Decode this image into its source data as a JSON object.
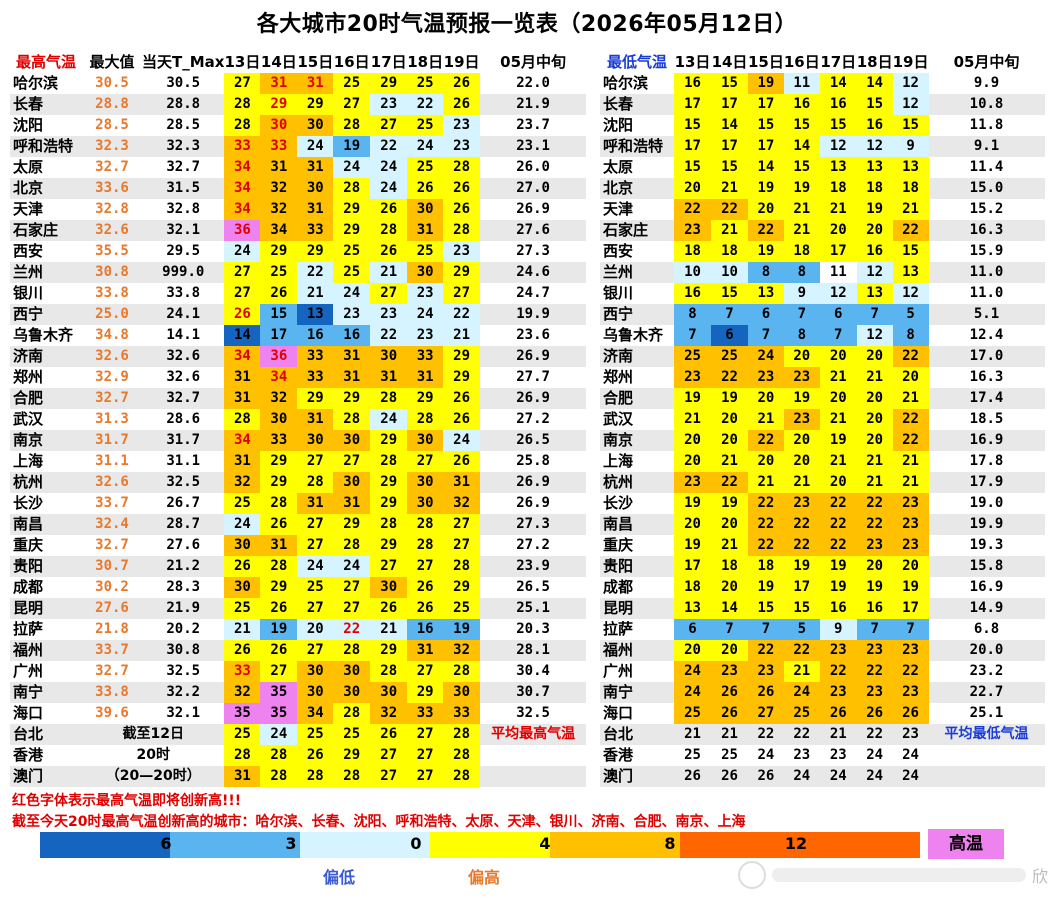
{
  "title": "各大城市20时气温预报一览表（2026年05月12日）",
  "high": {
    "headers": [
      "最高气温",
      "最大值",
      "当天T_Max",
      "13日",
      "14日",
      "15日",
      "16日",
      "17日",
      "18日",
      "19日",
      "05月中旬"
    ],
    "rows": [
      {
        "city": "哈尔滨",
        "max": "30.5",
        "tmax": "30.5",
        "d": [
          27,
          31,
          31,
          25,
          29,
          25,
          26
        ],
        "ten": "22.0"
      },
      {
        "city": "长春",
        "max": "28.8",
        "tmax": "28.8",
        "d": [
          28,
          29,
          29,
          27,
          23,
          22,
          26
        ],
        "ten": "21.9"
      },
      {
        "city": "沈阳",
        "max": "28.5",
        "tmax": "28.5",
        "d": [
          28,
          30,
          30,
          28,
          27,
          25,
          23
        ],
        "ten": "23.7"
      },
      {
        "city": "呼和浩特",
        "max": "32.3",
        "tmax": "32.3",
        "d": [
          33,
          33,
          24,
          19,
          22,
          24,
          23
        ],
        "ten": "23.1"
      },
      {
        "city": "太原",
        "max": "32.7",
        "tmax": "32.7",
        "d": [
          34,
          31,
          31,
          24,
          24,
          25,
          28
        ],
        "ten": "26.0"
      },
      {
        "city": "北京",
        "max": "33.6",
        "tmax": "31.5",
        "d": [
          34,
          32,
          30,
          28,
          24,
          26,
          26
        ],
        "ten": "27.0"
      },
      {
        "city": "天津",
        "max": "32.8",
        "tmax": "32.8",
        "d": [
          34,
          32,
          31,
          29,
          26,
          30,
          26
        ],
        "ten": "26.9"
      },
      {
        "city": "石家庄",
        "max": "32.6",
        "tmax": "32.1",
        "d": [
          36,
          34,
          33,
          29,
          28,
          31,
          28
        ],
        "ten": "27.6"
      },
      {
        "city": "西安",
        "max": "35.5",
        "tmax": "29.5",
        "d": [
          24,
          29,
          29,
          25,
          26,
          25,
          23
        ],
        "ten": "27.3"
      },
      {
        "city": "兰州",
        "max": "30.8",
        "tmax": "999.0",
        "d": [
          27,
          25,
          22,
          25,
          21,
          30,
          29
        ],
        "ten": "24.6"
      },
      {
        "city": "银川",
        "max": "33.8",
        "tmax": "33.8",
        "d": [
          27,
          26,
          21,
          24,
          27,
          23,
          27
        ],
        "ten": "24.7"
      },
      {
        "city": "西宁",
        "max": "25.0",
        "tmax": "24.1",
        "d": [
          26,
          15,
          13,
          23,
          23,
          24,
          22
        ],
        "ten": "19.9"
      },
      {
        "city": "乌鲁木齐",
        "max": "34.8",
        "tmax": "14.1",
        "d": [
          14,
          17,
          16,
          16,
          22,
          23,
          21
        ],
        "ten": "23.6"
      },
      {
        "city": "济南",
        "max": "32.6",
        "tmax": "32.6",
        "d": [
          34,
          36,
          33,
          31,
          30,
          33,
          29
        ],
        "ten": "26.9"
      },
      {
        "city": "郑州",
        "max": "32.9",
        "tmax": "32.6",
        "d": [
          31,
          34,
          33,
          31,
          31,
          31,
          29
        ],
        "ten": "27.7"
      },
      {
        "city": "合肥",
        "max": "32.7",
        "tmax": "32.7",
        "d": [
          31,
          32,
          29,
          29,
          28,
          29,
          26
        ],
        "ten": "26.9"
      },
      {
        "city": "武汉",
        "max": "31.3",
        "tmax": "28.6",
        "d": [
          28,
          30,
          31,
          28,
          24,
          28,
          26
        ],
        "ten": "27.2"
      },
      {
        "city": "南京",
        "max": "31.7",
        "tmax": "31.7",
        "d": [
          34,
          33,
          30,
          30,
          29,
          30,
          24
        ],
        "ten": "26.5"
      },
      {
        "city": "上海",
        "max": "31.1",
        "tmax": "31.1",
        "d": [
          31,
          29,
          27,
          27,
          28,
          27,
          26
        ],
        "ten": "25.8"
      },
      {
        "city": "杭州",
        "max": "32.6",
        "tmax": "32.5",
        "d": [
          32,
          29,
          28,
          30,
          29,
          30,
          31
        ],
        "ten": "26.9"
      },
      {
        "city": "长沙",
        "max": "33.7",
        "tmax": "26.7",
        "d": [
          25,
          28,
          31,
          31,
          29,
          30,
          32
        ],
        "ten": "26.9"
      },
      {
        "city": "南昌",
        "max": "32.4",
        "tmax": "28.7",
        "d": [
          24,
          26,
          27,
          29,
          28,
          28,
          27
        ],
        "ten": "27.3"
      },
      {
        "city": "重庆",
        "max": "32.7",
        "tmax": "27.6",
        "d": [
          30,
          31,
          27,
          28,
          29,
          28,
          27
        ],
        "ten": "27.2"
      },
      {
        "city": "贵阳",
        "max": "30.7",
        "tmax": "21.2",
        "d": [
          26,
          28,
          24,
          24,
          27,
          27,
          28
        ],
        "ten": "23.9"
      },
      {
        "city": "成都",
        "max": "30.2",
        "tmax": "28.3",
        "d": [
          30,
          29,
          25,
          27,
          30,
          26,
          29
        ],
        "ten": "26.5"
      },
      {
        "city": "昆明",
        "max": "27.6",
        "tmax": "21.9",
        "d": [
          25,
          26,
          27,
          27,
          26,
          26,
          25
        ],
        "ten": "25.1"
      },
      {
        "city": "拉萨",
        "max": "21.8",
        "tmax": "20.2",
        "d": [
          21,
          19,
          20,
          22,
          21,
          16,
          19
        ],
        "ten": "20.3"
      },
      {
        "city": "福州",
        "max": "33.7",
        "tmax": "30.8",
        "d": [
          26,
          26,
          27,
          28,
          29,
          31,
          32
        ],
        "ten": "28.1"
      },
      {
        "city": "广州",
        "max": "32.7",
        "tmax": "32.5",
        "d": [
          33,
          27,
          30,
          30,
          28,
          27,
          28
        ],
        "ten": "30.4"
      },
      {
        "city": "南宁",
        "max": "33.8",
        "tmax": "32.2",
        "d": [
          32,
          35,
          30,
          30,
          30,
          29,
          30
        ],
        "ten": "30.7"
      },
      {
        "city": "海口",
        "max": "39.6",
        "tmax": "32.1",
        "d": [
          35,
          35,
          34,
          28,
          32,
          33,
          33
        ],
        "ten": "32.5"
      },
      {
        "city": "台北",
        "max": "",
        "tmax": "",
        "d": [
          25,
          24,
          25,
          25,
          26,
          27,
          28
        ],
        "ten": ""
      },
      {
        "city": "香港",
        "max": "",
        "tmax": "",
        "d": [
          28,
          28,
          26,
          29,
          27,
          27,
          28
        ],
        "ten": ""
      },
      {
        "city": "澳门",
        "max": "",
        "tmax": "",
        "d": [
          31,
          28,
          28,
          28,
          27,
          27,
          28
        ],
        "ten": ""
      }
    ],
    "note1": "截至12日",
    "note2": "20时",
    "note3": "（20—20时）",
    "avg_label": "平均最高气温",
    "red_font": {
      "0": [
        1,
        2
      ],
      "1": [
        1
      ],
      "2": [
        1
      ],
      "3": [
        0,
        1
      ],
      "4": [
        0
      ],
      "5": [
        0
      ],
      "6": [
        0
      ],
      "7": [
        0
      ],
      "13": [
        0,
        1
      ],
      "14": [
        1
      ],
      "16": [],
      "17": [
        0
      ],
      "26": [
        3
      ],
      "28": [
        0
      ],
      "11": [
        0
      ]
    }
  },
  "low": {
    "headers": [
      "最低气温",
      "13日",
      "14日",
      "15日",
      "16日",
      "17日",
      "18日",
      "19日",
      "05月中旬"
    ],
    "rows": [
      {
        "city": "哈尔滨",
        "d": [
          16,
          15,
          19,
          11,
          14,
          14,
          12
        ],
        "ten": "9.9"
      },
      {
        "city": "长春",
        "d": [
          17,
          17,
          17,
          16,
          16,
          15,
          12
        ],
        "ten": "10.8"
      },
      {
        "city": "沈阳",
        "d": [
          15,
          14,
          15,
          15,
          15,
          16,
          15
        ],
        "ten": "11.8"
      },
      {
        "city": "呼和浩特",
        "d": [
          17,
          17,
          17,
          14,
          12,
          12,
          9
        ],
        "ten": "9.1"
      },
      {
        "city": "太原",
        "d": [
          15,
          15,
          14,
          15,
          13,
          13,
          13
        ],
        "ten": "11.4"
      },
      {
        "city": "北京",
        "d": [
          20,
          21,
          19,
          19,
          18,
          18,
          18
        ],
        "ten": "15.0"
      },
      {
        "city": "天津",
        "d": [
          22,
          22,
          20,
          21,
          21,
          19,
          21
        ],
        "ten": "15.2"
      },
      {
        "city": "石家庄",
        "d": [
          23,
          21,
          22,
          21,
          20,
          20,
          22
        ],
        "ten": "16.3"
      },
      {
        "city": "西安",
        "d": [
          18,
          18,
          19,
          18,
          17,
          16,
          15
        ],
        "ten": "15.9"
      },
      {
        "city": "兰州",
        "d": [
          10,
          10,
          8,
          8,
          11,
          12,
          13
        ],
        "ten": "11.0"
      },
      {
        "city": "银川",
        "d": [
          16,
          15,
          13,
          9,
          12,
          13,
          12
        ],
        "ten": "11.0"
      },
      {
        "city": "西宁",
        "d": [
          8,
          7,
          6,
          7,
          6,
          7,
          5
        ],
        "ten": "5.1"
      },
      {
        "city": "乌鲁木齐",
        "d": [
          7,
          6,
          7,
          8,
          7,
          12,
          8
        ],
        "ten": "12.4"
      },
      {
        "city": "济南",
        "d": [
          25,
          25,
          24,
          20,
          20,
          20,
          22
        ],
        "ten": "17.0"
      },
      {
        "city": "郑州",
        "d": [
          23,
          22,
          23,
          23,
          21,
          21,
          20
        ],
        "ten": "16.3"
      },
      {
        "city": "合肥",
        "d": [
          19,
          19,
          20,
          19,
          20,
          20,
          21
        ],
        "ten": "17.4"
      },
      {
        "city": "武汉",
        "d": [
          21,
          20,
          21,
          23,
          21,
          20,
          22
        ],
        "ten": "18.5"
      },
      {
        "city": "南京",
        "d": [
          20,
          20,
          22,
          20,
          19,
          20,
          22
        ],
        "ten": "16.9"
      },
      {
        "city": "上海",
        "d": [
          20,
          21,
          20,
          20,
          21,
          21,
          21
        ],
        "ten": "17.8"
      },
      {
        "city": "杭州",
        "d": [
          23,
          22,
          21,
          21,
          20,
          21,
          21
        ],
        "ten": "17.9"
      },
      {
        "city": "长沙",
        "d": [
          19,
          19,
          22,
          23,
          22,
          22,
          23
        ],
        "ten": "19.0"
      },
      {
        "city": "南昌",
        "d": [
          20,
          20,
          22,
          22,
          22,
          22,
          23
        ],
        "ten": "19.9"
      },
      {
        "city": "重庆",
        "d": [
          19,
          21,
          22,
          22,
          22,
          23,
          23
        ],
        "ten": "19.3"
      },
      {
        "city": "贵阳",
        "d": [
          17,
          18,
          18,
          19,
          19,
          20,
          20
        ],
        "ten": "15.8"
      },
      {
        "city": "成都",
        "d": [
          18,
          20,
          19,
          17,
          19,
          19,
          19
        ],
        "ten": "16.9"
      },
      {
        "city": "昆明",
        "d": [
          13,
          14,
          15,
          15,
          16,
          16,
          17
        ],
        "ten": "14.9"
      },
      {
        "city": "拉萨",
        "d": [
          6,
          7,
          7,
          5,
          9,
          7,
          7
        ],
        "ten": "6.8"
      },
      {
        "city": "福州",
        "d": [
          20,
          20,
          22,
          22,
          23,
          23,
          23
        ],
        "ten": "20.0"
      },
      {
        "city": "广州",
        "d": [
          24,
          23,
          23,
          21,
          22,
          22,
          22
        ],
        "ten": "23.2"
      },
      {
        "city": "南宁",
        "d": [
          24,
          26,
          26,
          24,
          23,
          23,
          23
        ],
        "ten": "22.7"
      },
      {
        "city": "海口",
        "d": [
          25,
          26,
          27,
          25,
          26,
          26,
          26
        ],
        "ten": "25.1"
      },
      {
        "city": "台北",
        "d": [
          21,
          21,
          22,
          22,
          21,
          22,
          23
        ],
        "ten": ""
      },
      {
        "city": "香港",
        "d": [
          25,
          25,
          24,
          23,
          23,
          24,
          24
        ],
        "ten": ""
      },
      {
        "city": "澳门",
        "d": [
          26,
          26,
          26,
          24,
          24,
          24,
          24
        ],
        "ten": ""
      }
    ],
    "avg_label": "平均最低气温"
  },
  "messages": {
    "line1": "红色字体表示最高气温即将创新高!!!",
    "line2": "截至今天20时最高气温创新高的城市：哈尔滨、长春、沈阳、呼和浩特、太原、天津、银川、济南、合肥、南京、上海"
  },
  "legend": {
    "ticks": [
      "6",
      "3",
      "0",
      "4",
      "8",
      "12"
    ],
    "colors": [
      "#1565c0",
      "#5ab4f0",
      "#d6f4ff",
      "#ffff00",
      "#ffc000",
      "#ff6600"
    ],
    "hot_label": "高温",
    "hot_color": "#ee82ee",
    "low_label": "偏低",
    "high_label": "偏高"
  },
  "watermark": "欣"
}
